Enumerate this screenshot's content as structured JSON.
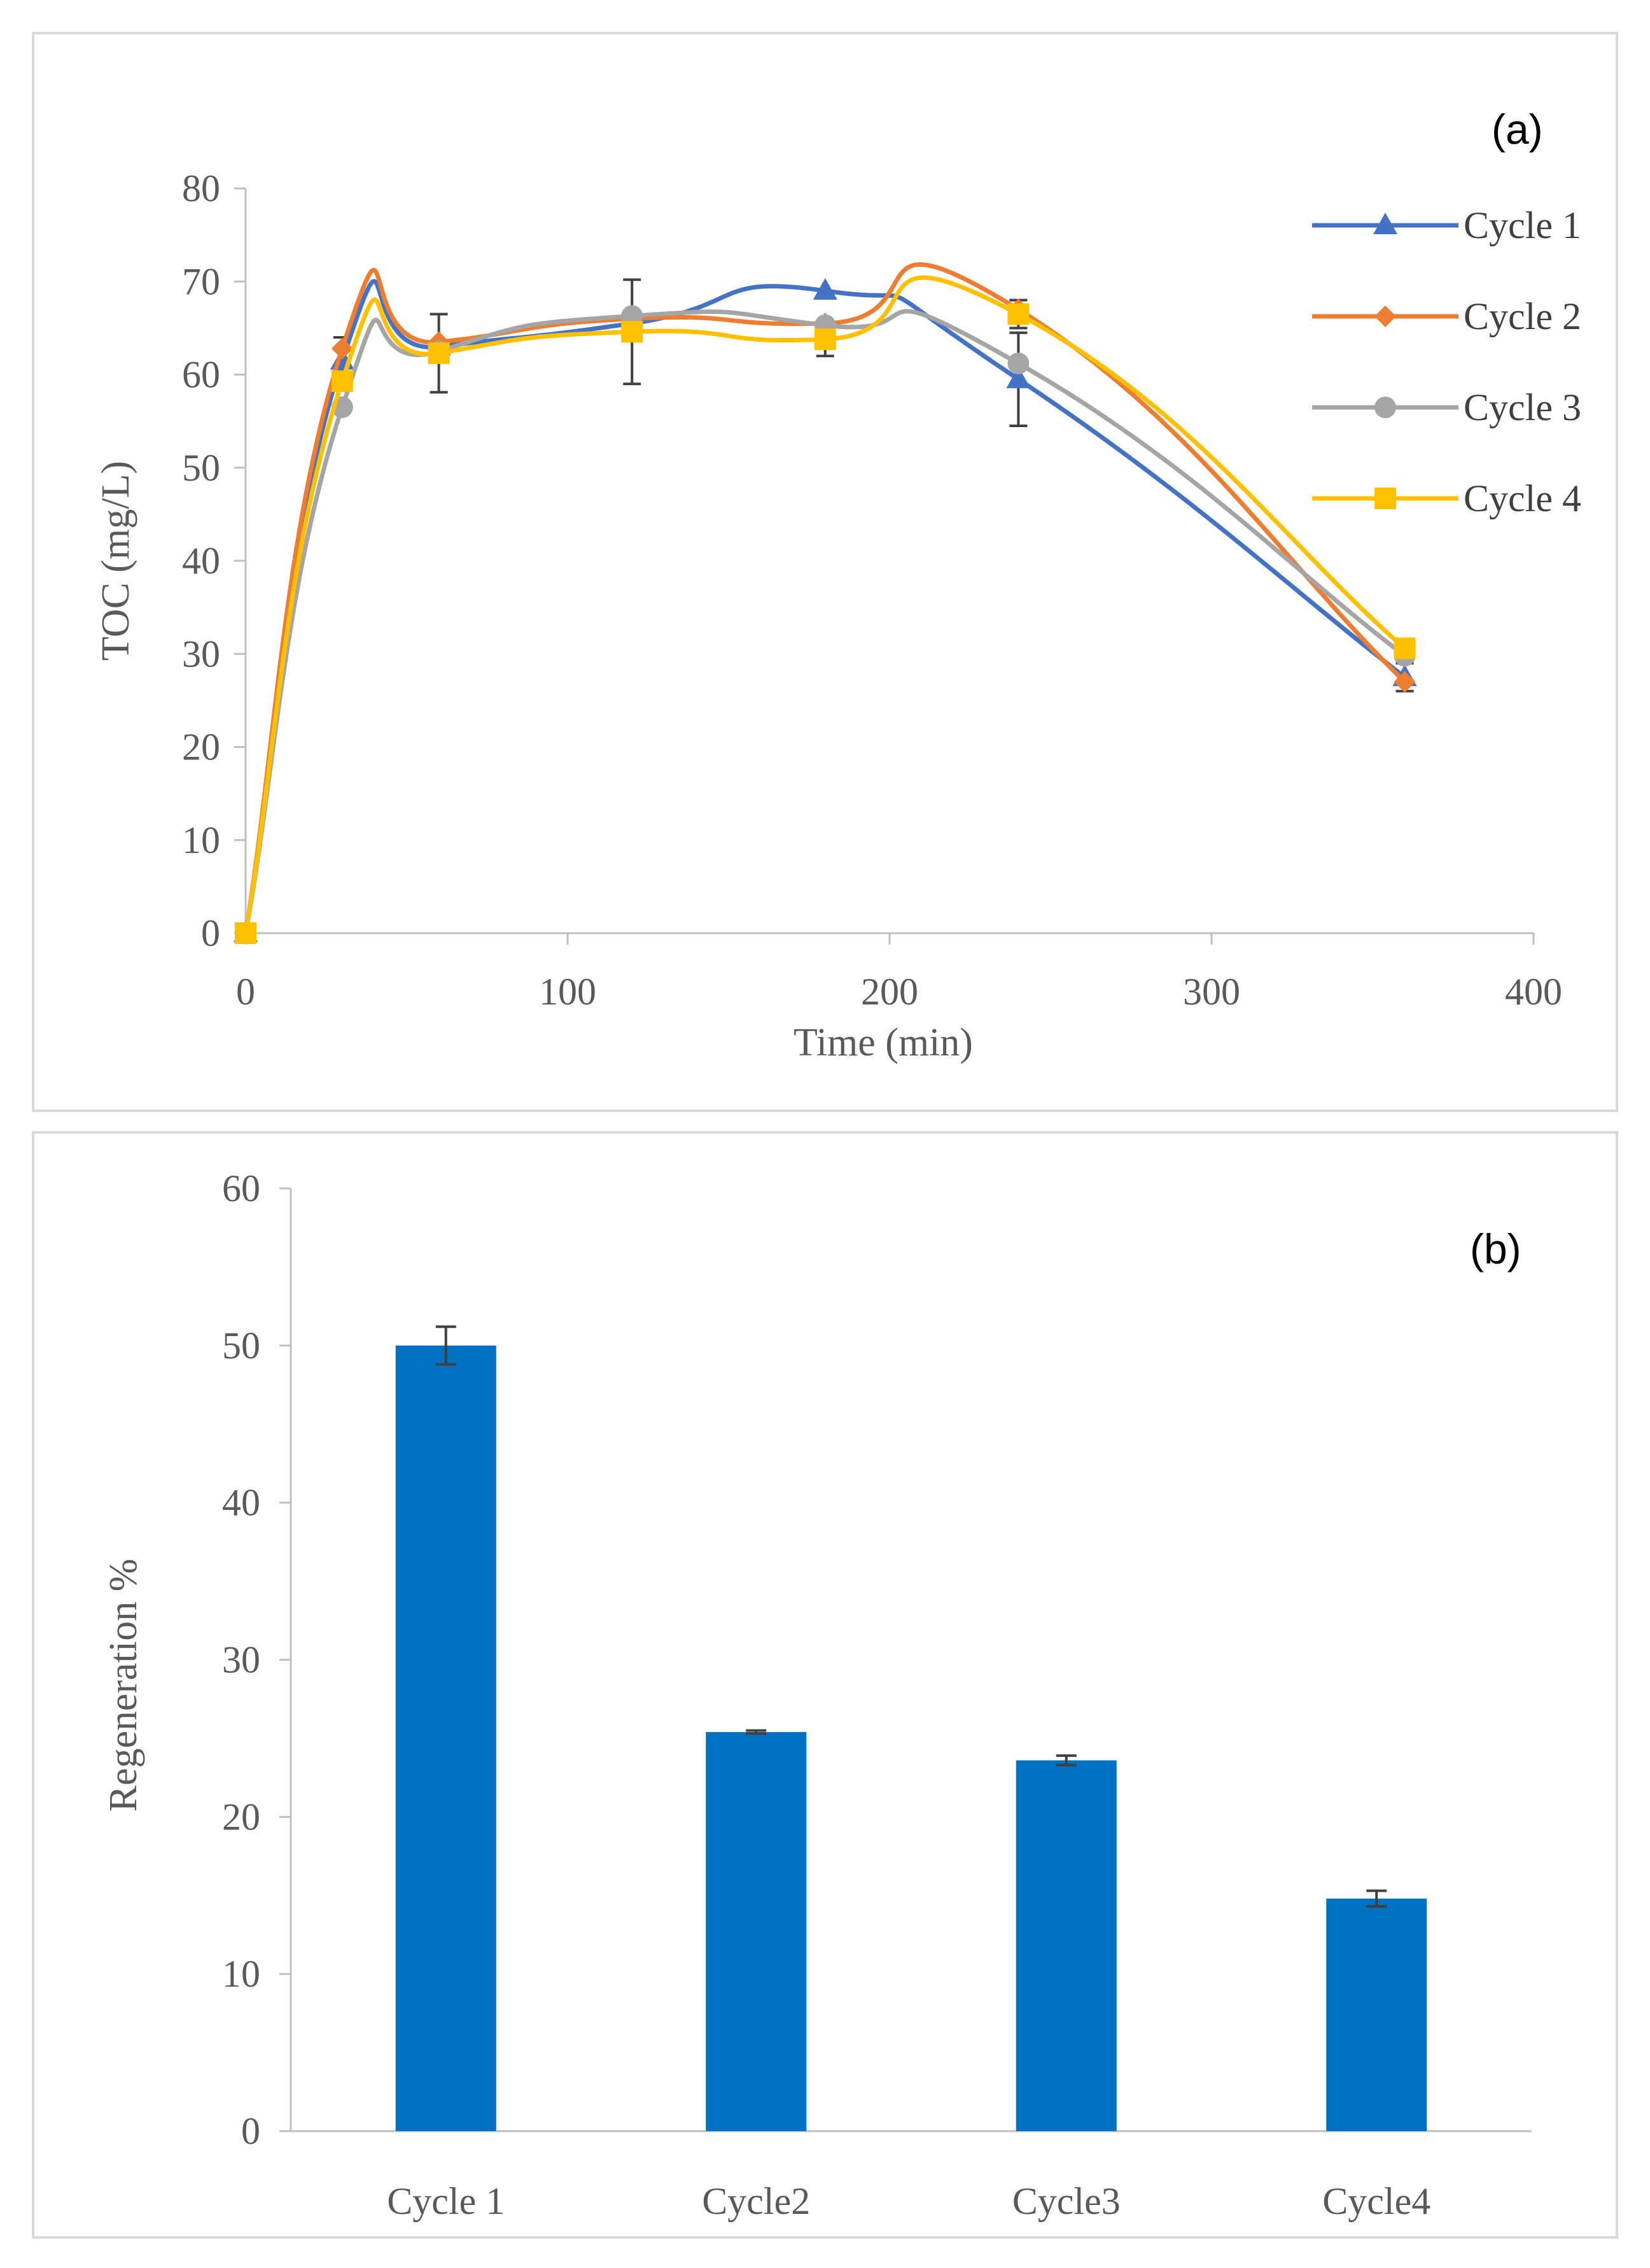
{
  "chart_data": [
    {
      "type": "line",
      "panel_label": "(a)",
      "xlabel": "Time (min)",
      "ylabel": "TOC (mg/L)",
      "xlim": [
        0,
        400
      ],
      "ylim": [
        0,
        80
      ],
      "x_ticks": [
        0,
        100,
        200,
        300,
        400
      ],
      "y_ticks": [
        0,
        10,
        20,
        30,
        40,
        50,
        60,
        70,
        80
      ],
      "grid": false,
      "smooth": true,
      "legend_position": "right",
      "x": [
        0,
        30,
        60,
        120,
        180,
        240,
        360
      ],
      "series": [
        {
          "name": "Cycle 1",
          "color": "#4472c4",
          "marker": "triangle",
          "values": [
            0,
            61.5,
            63,
            65.5,
            69,
            59.5,
            27.5
          ],
          "error": [
            0,
            2.5,
            0,
            0,
            0,
            5,
            1.5
          ]
        },
        {
          "name": "Cycle 2",
          "color": "#ed7d31",
          "marker": "diamond",
          "values": [
            0,
            62.8,
            63.5,
            66,
            65.5,
            67,
            27
          ],
          "error": [
            0,
            0,
            0,
            0,
            0,
            0,
            0
          ]
        },
        {
          "name": "Cycle 3",
          "color": "#a5a5a5",
          "marker": "circle",
          "values": [
            0,
            56.5,
            62.5,
            66.3,
            65.3,
            61.2,
            29.8
          ],
          "error": [
            0,
            0,
            0,
            0,
            0,
            0,
            0
          ]
        },
        {
          "name": "Cycle 4",
          "color": "#ffc000",
          "marker": "square",
          "values": [
            0,
            59.3,
            62.3,
            64.6,
            63.8,
            66.5,
            30.6
          ],
          "error": [
            0,
            0,
            4.2,
            5.6,
            1.8,
            1.5,
            0
          ]
        }
      ]
    },
    {
      "type": "bar",
      "panel_label": "(b)",
      "xlabel": "",
      "ylabel": "Regeneration %",
      "ylim": [
        0,
        60
      ],
      "y_ticks": [
        0,
        10,
        20,
        30,
        40,
        50,
        60
      ],
      "grid": false,
      "bar_color": "#0070c0",
      "categories": [
        "Cycle 1",
        "Cycle2",
        "Cycle3",
        "Cycle4"
      ],
      "values": [
        50,
        25.4,
        23.6,
        14.8
      ],
      "error": [
        1.2,
        0.1,
        0.3,
        0.5
      ]
    }
  ]
}
